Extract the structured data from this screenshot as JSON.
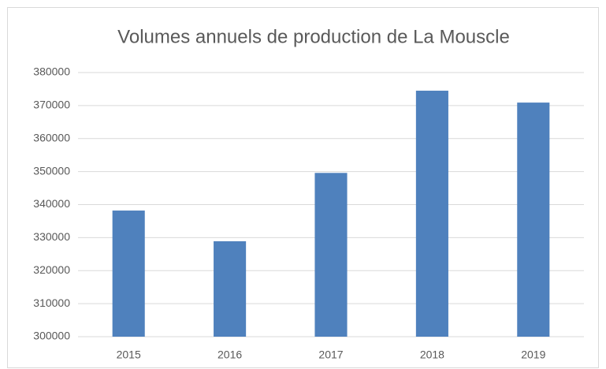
{
  "chart_data": {
    "type": "bar",
    "title": "Volumes annuels de production de La Mouscle",
    "categories": [
      "2015",
      "2016",
      "2017",
      "2018",
      "2019"
    ],
    "values": [
      338200,
      328900,
      349600,
      374500,
      370900
    ],
    "color": "#4f81bd",
    "ylim": [
      300000,
      380000
    ],
    "yticks": [
      300000,
      310000,
      320000,
      330000,
      340000,
      350000,
      360000,
      370000,
      380000
    ],
    "grid": true
  }
}
